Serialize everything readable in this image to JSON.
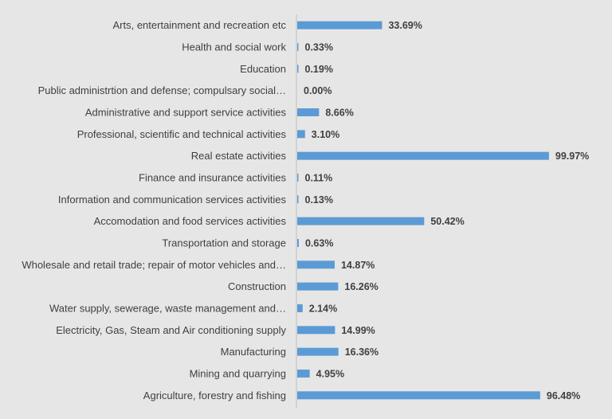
{
  "chart_data": {
    "type": "bar",
    "orientation": "horizontal",
    "title": "",
    "xlabel": "",
    "ylabel": "",
    "xlim": [
      0,
      100
    ],
    "grid": false,
    "legend": "none",
    "bar_color": "#5b9bd5",
    "value_format": "percent-2dp",
    "categories": [
      "Arts, entertainment and recreation etc",
      "Health and social work",
      "Education",
      "Public administrtion and defense; compulsary social…",
      "Administrative and support service activities",
      "Professional, scientific and technical activities",
      "Real estate activities",
      "Finance and insurance activities",
      "Information and communication services activities",
      "Accomodation and food services activities",
      "Transportation and storage",
      "Wholesale and retail trade; repair of motor vehicles and…",
      "Construction",
      "Water supply, sewerage, waste management and…",
      "Electricity, Gas, Steam and Air conditioning supply",
      "Manufacturing",
      "Mining and quarrying",
      "Agriculture, forestry and fishing"
    ],
    "values": [
      33.69,
      0.33,
      0.19,
      0.0,
      8.66,
      3.1,
      99.97,
      0.11,
      0.13,
      50.42,
      0.63,
      14.87,
      16.26,
      2.14,
      14.99,
      16.36,
      4.95,
      96.48
    ],
    "value_labels": [
      "33.69%",
      "0.33%",
      "0.19%",
      "0.00%",
      "8.66%",
      "3.10%",
      "99.97%",
      "0.11%",
      "0.13%",
      "50.42%",
      "0.63%",
      "14.87%",
      "16.26%",
      "2.14%",
      "14.99%",
      "16.36%",
      "4.95%",
      "96.48%"
    ]
  }
}
